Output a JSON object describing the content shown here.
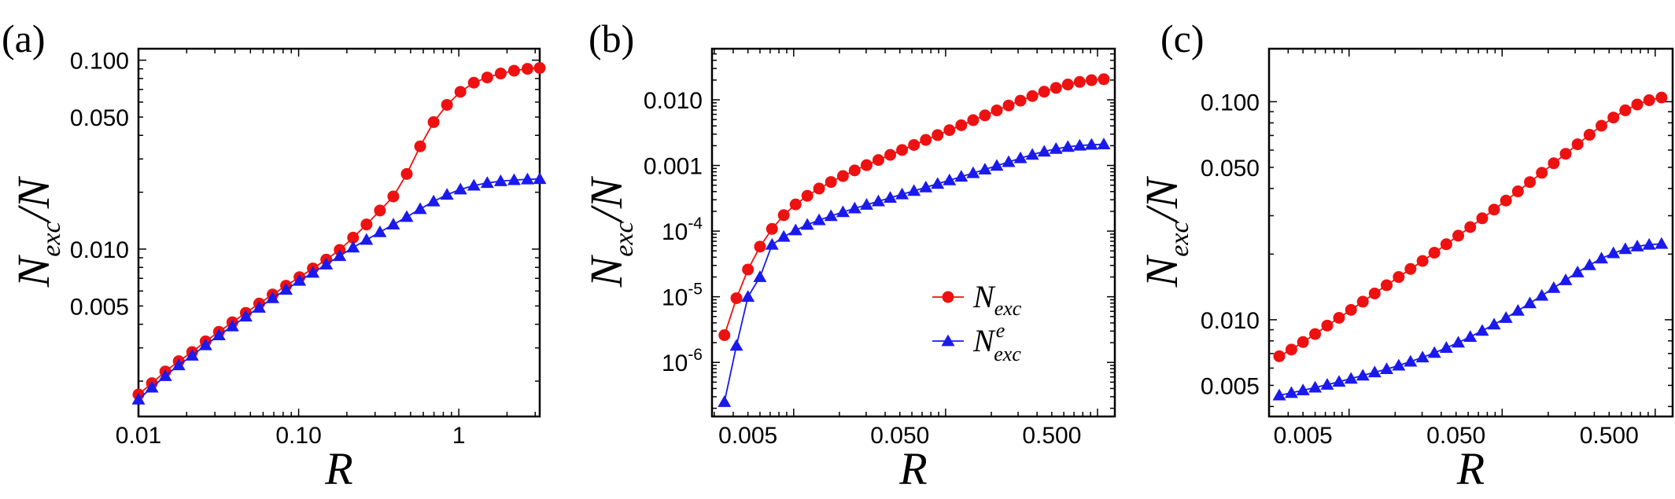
{
  "chart_data": [
    {
      "panel_label": "(a)",
      "type": "line",
      "xscale": "log",
      "yscale": "log",
      "xlim": [
        0.01,
        3.2
      ],
      "ylim": [
        0.0013,
        0.115
      ],
      "xticks": [
        {
          "value": 0.01,
          "label": "0.01"
        },
        {
          "value": 0.1,
          "label": "0.10"
        },
        {
          "value": 1,
          "label": "1"
        }
      ],
      "yticks": [
        {
          "value": 0.1,
          "label": "0.100"
        },
        {
          "value": 0.05,
          "label": "0.050"
        },
        {
          "value": 0.01,
          "label": "0.010"
        },
        {
          "value": 0.005,
          "label": "0.005"
        }
      ],
      "xlabel": "R",
      "ylabel": {
        "main": "N",
        "sub": "exc",
        "tail": "/N"
      },
      "series": [
        {
          "name": "N_exc",
          "color": "#ee1111",
          "marker": "circle",
          "x": [
            0.01,
            0.01213,
            0.01471,
            0.01784,
            0.02163,
            0.02623,
            0.03181,
            0.03857,
            0.04678,
            0.05673,
            0.06879,
            0.08343,
            0.1012,
            0.1227,
            0.1488,
            0.1804,
            0.2188,
            0.2653,
            0.3218,
            0.3902,
            0.4732,
            0.5739,
            0.696,
            0.844,
            1.0236,
            1.2413,
            1.5053,
            1.8255,
            2.2138,
            2.6847,
            3.2
          ],
          "y": [
            0.0017,
            0.00195,
            0.00225,
            0.00255,
            0.00285,
            0.00325,
            0.00365,
            0.0041,
            0.0046,
            0.00515,
            0.00575,
            0.0064,
            0.0071,
            0.0079,
            0.0088,
            0.0099,
            0.0115,
            0.0135,
            0.016,
            0.019,
            0.025,
            0.035,
            0.047,
            0.058,
            0.068,
            0.076,
            0.081,
            0.085,
            0.088,
            0.09,
            0.091
          ]
        },
        {
          "name": "N_exc^e",
          "color": "#1a1aee",
          "marker": "triangle",
          "x": [
            0.01,
            0.01213,
            0.01471,
            0.01784,
            0.02163,
            0.02623,
            0.03181,
            0.03857,
            0.04678,
            0.05673,
            0.06879,
            0.08343,
            0.1012,
            0.1227,
            0.1488,
            0.1804,
            0.2188,
            0.2653,
            0.3218,
            0.3902,
            0.4732,
            0.5739,
            0.696,
            0.844,
            1.0236,
            1.2413,
            1.5053,
            1.8255,
            2.2138,
            2.6847,
            3.2
          ],
          "y": [
            0.0016,
            0.00185,
            0.00213,
            0.00243,
            0.00273,
            0.0031,
            0.0035,
            0.0039,
            0.0044,
            0.0049,
            0.0055,
            0.0061,
            0.0068,
            0.0075,
            0.0083,
            0.0092,
            0.0102,
            0.0112,
            0.0123,
            0.0135,
            0.0148,
            0.0163,
            0.0179,
            0.0194,
            0.0207,
            0.0217,
            0.0224,
            0.0229,
            0.0232,
            0.0234,
            0.0235
          ]
        }
      ]
    },
    {
      "panel_label": "(b)",
      "type": "line",
      "xscale": "log",
      "yscale": "log",
      "xlim": [
        0.0029,
        1.3
      ],
      "ylim": [
        1.5e-07,
        0.06
      ],
      "xticks": [
        {
          "value": 0.005,
          "label": "0.005"
        },
        {
          "value": 0.05,
          "label": "0.050"
        },
        {
          "value": 0.5,
          "label": "0.500"
        }
      ],
      "yticks": [
        {
          "value": 0.01,
          "label": "0.010"
        },
        {
          "value": 0.001,
          "label": "0.001"
        },
        {
          "value": 0.0001,
          "label": "10",
          "exp": "-4"
        },
        {
          "value": 1e-05,
          "label": "10",
          "exp": "-5"
        },
        {
          "value": 1e-06,
          "label": "10",
          "exp": "-6"
        }
      ],
      "xlabel": "R",
      "ylabel": {
        "main": "N",
        "sub": "exc",
        "tail": "/N"
      },
      "legend": {
        "position": "center-right",
        "entries": [
          {
            "main": "N",
            "sub": "exc",
            "sup": ""
          },
          {
            "main": "N",
            "sub": "exc",
            "sup": "e"
          }
        ]
      },
      "series": [
        {
          "name": "N_exc",
          "color": "#ee1111",
          "marker": "circle",
          "x": [
            0.0035,
            0.0042,
            0.005,
            0.006,
            0.0072,
            0.0086,
            0.0103,
            0.0123,
            0.0147,
            0.0176,
            0.0211,
            0.0252,
            0.0302,
            0.0361,
            0.0432,
            0.0517,
            0.0619,
            0.0741,
            0.0886,
            0.106,
            0.1268,
            0.1518,
            0.1816,
            0.2173,
            0.26,
            0.3111,
            0.3723,
            0.4455,
            0.5331,
            0.6378,
            0.7632,
            0.9131,
            1.1
          ],
          "y": [
            2.6e-06,
            9.5e-06,
            2.6e-05,
            5.8e-05,
            0.000108,
            0.000175,
            0.000255,
            0.000345,
            0.000445,
            0.00056,
            0.00069,
            0.00084,
            0.00101,
            0.00121,
            0.00145,
            0.00172,
            0.00205,
            0.00245,
            0.0029,
            0.00345,
            0.0041,
            0.0049,
            0.0058,
            0.0069,
            0.0082,
            0.0097,
            0.0114,
            0.0133,
            0.0152,
            0.0171,
            0.0187,
            0.0199,
            0.0206
          ]
        },
        {
          "name": "N_exc^e",
          "color": "#1a1aee",
          "marker": "triangle",
          "x": [
            0.0035,
            0.0042,
            0.005,
            0.006,
            0.0072,
            0.0086,
            0.0103,
            0.0123,
            0.0147,
            0.0176,
            0.0211,
            0.0252,
            0.0302,
            0.0361,
            0.0432,
            0.0517,
            0.0619,
            0.0741,
            0.0886,
            0.106,
            0.1268,
            0.1518,
            0.1816,
            0.2173,
            0.26,
            0.3111,
            0.3723,
            0.4455,
            0.5331,
            0.6378,
            0.7632,
            0.9131,
            1.1
          ],
          "y": [
            2.5e-07,
            1.8e-06,
            1e-05,
            2e-05,
            6.2e-05,
            8.2e-05,
            0.000103,
            0.000125,
            0.000147,
            0.00017,
            0.000195,
            0.000222,
            0.000252,
            0.000285,
            0.000322,
            0.000364,
            0.00041,
            0.000464,
            0.000525,
            0.000595,
            0.000675,
            0.000765,
            0.00087,
            0.00099,
            0.00113,
            0.00129,
            0.00146,
            0.00163,
            0.00179,
            0.00192,
            0.00201,
            0.00207,
            0.0021
          ]
        }
      ]
    },
    {
      "panel_label": "(c)",
      "type": "line",
      "xscale": "log",
      "yscale": "log",
      "xlim": [
        0.003,
        1.3
      ],
      "ylim": [
        0.0036,
        0.175
      ],
      "xticks": [
        {
          "value": 0.005,
          "label": "0.005"
        },
        {
          "value": 0.05,
          "label": "0.050"
        },
        {
          "value": 0.5,
          "label": "0.500"
        }
      ],
      "yticks": [
        {
          "value": 0.1,
          "label": "0.100"
        },
        {
          "value": 0.05,
          "label": "0.050"
        },
        {
          "value": 0.01,
          "label": "0.010"
        },
        {
          "value": 0.005,
          "label": "0.005"
        }
      ],
      "xlabel": "R",
      "ylabel": {
        "main": "N",
        "sub": "exc",
        "tail": "/N"
      },
      "series": [
        {
          "name": "N_exc",
          "color": "#ee1111",
          "marker": "circle",
          "x": [
            0.0035,
            0.0042,
            0.005,
            0.006,
            0.0072,
            0.0086,
            0.0103,
            0.0123,
            0.0147,
            0.0176,
            0.0211,
            0.0252,
            0.0302,
            0.0361,
            0.0432,
            0.0517,
            0.0619,
            0.0741,
            0.0886,
            0.106,
            0.1268,
            0.1518,
            0.1816,
            0.2173,
            0.26,
            0.3111,
            0.3723,
            0.4455,
            0.5331,
            0.6378,
            0.7632,
            0.9131,
            1.1
          ],
          "y": [
            0.0068,
            0.0073,
            0.0079,
            0.0086,
            0.0094,
            0.0102,
            0.0111,
            0.0121,
            0.0132,
            0.0144,
            0.0157,
            0.0171,
            0.0186,
            0.0203,
            0.0222,
            0.0243,
            0.0266,
            0.0292,
            0.032,
            0.0352,
            0.0388,
            0.0428,
            0.0472,
            0.0522,
            0.0577,
            0.0638,
            0.0705,
            0.0776,
            0.0846,
            0.0913,
            0.0971,
            0.1016,
            0.1045
          ]
        },
        {
          "name": "N_exc^e",
          "color": "#1a1aee",
          "marker": "triangle",
          "x": [
            0.0035,
            0.0042,
            0.005,
            0.006,
            0.0072,
            0.0086,
            0.0103,
            0.0123,
            0.0147,
            0.0176,
            0.0211,
            0.0252,
            0.0302,
            0.0361,
            0.0432,
            0.0517,
            0.0619,
            0.0741,
            0.0886,
            0.106,
            0.1268,
            0.1518,
            0.1816,
            0.2173,
            0.26,
            0.3111,
            0.3723,
            0.4455,
            0.5331,
            0.6378,
            0.7632,
            0.9131,
            1.1
          ],
          "y": [
            0.0045,
            0.00462,
            0.00475,
            0.00489,
            0.00504,
            0.0052,
            0.00537,
            0.00555,
            0.00574,
            0.00594,
            0.00617,
            0.00643,
            0.00672,
            0.00705,
            0.00743,
            0.00786,
            0.00835,
            0.0089,
            0.00952,
            0.0102,
            0.011,
            0.0119,
            0.0129,
            0.014,
            0.0152,
            0.0165,
            0.0178,
            0.0191,
            0.0202,
            0.0211,
            0.0217,
            0.0221,
            0.0223
          ]
        }
      ]
    }
  ]
}
